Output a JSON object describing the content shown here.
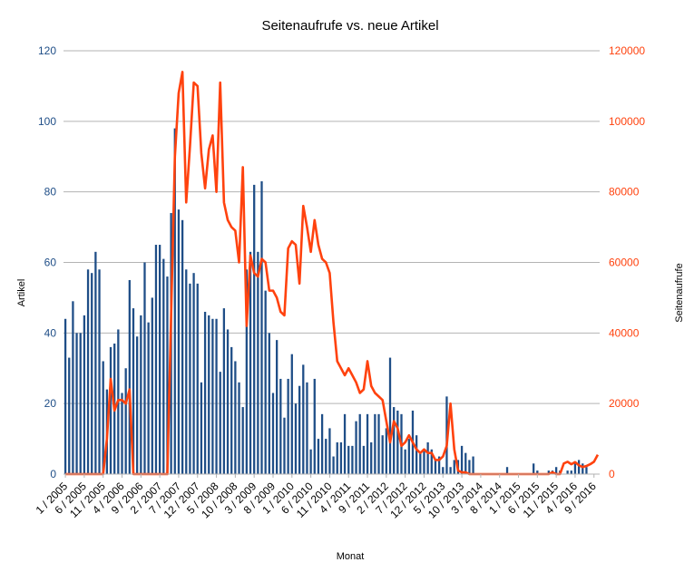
{
  "chart_data": {
    "type": "bar+line",
    "title": "Seitenaufrufe vs. neue Artikel",
    "xlabel": "Monat",
    "ylabel_left": "Artikel",
    "ylabel_right": "Seitenaufrufe",
    "ylim_left": [
      0,
      120
    ],
    "ylim_right": [
      0,
      120000
    ],
    "yticks_left": [
      "0",
      "20",
      "40",
      "60",
      "80",
      "100",
      "120"
    ],
    "yticks_right": [
      "0",
      "20000",
      "40000",
      "60000",
      "80000",
      "100000",
      "120000"
    ],
    "legend": "none",
    "grid": "horizontal",
    "colors": {
      "bars": "#1f4e87",
      "line": "#ff420e",
      "grid": "#b3b3b3",
      "left_axis_text": "#1f4e87",
      "right_axis_text": "#ff420e"
    },
    "x_labels": [
      {
        "i": 0,
        "label": "1 / 2005"
      },
      {
        "i": 5,
        "label": "6 / 2005"
      },
      {
        "i": 10,
        "label": "11 / 2005"
      },
      {
        "i": 15,
        "label": "4 / 2006"
      },
      {
        "i": 20,
        "label": "9 / 2006"
      },
      {
        "i": 25,
        "label": "2 / 2007"
      },
      {
        "i": 30,
        "label": "7 / 2007"
      },
      {
        "i": 35,
        "label": "12 / 2007"
      },
      {
        "i": 40,
        "label": "5 / 2008"
      },
      {
        "i": 45,
        "label": "10 / 2008"
      },
      {
        "i": 50,
        "label": "3 / 2009"
      },
      {
        "i": 55,
        "label": "8 / 2009"
      },
      {
        "i": 60,
        "label": "1 / 2010"
      },
      {
        "i": 65,
        "label": "6 / 2010"
      },
      {
        "i": 70,
        "label": "11 / 2010"
      },
      {
        "i": 75,
        "label": "4 / 2011"
      },
      {
        "i": 80,
        "label": "9 / 2011"
      },
      {
        "i": 85,
        "label": "2 / 2012"
      },
      {
        "i": 90,
        "label": "7 / 2012"
      },
      {
        "i": 95,
        "label": "12 / 2012"
      },
      {
        "i": 100,
        "label": "5 / 2013"
      },
      {
        "i": 105,
        "label": "10 / 2013"
      },
      {
        "i": 110,
        "label": "3 / 2014"
      },
      {
        "i": 115,
        "label": "8 / 2014"
      },
      {
        "i": 120,
        "label": "1 / 2015"
      },
      {
        "i": 125,
        "label": "6 / 2015"
      },
      {
        "i": 130,
        "label": "11 / 2015"
      },
      {
        "i": 135,
        "label": "4 / 2016"
      },
      {
        "i": 140,
        "label": "9 / 2016"
      }
    ],
    "series": [
      {
        "name": "Artikel",
        "type": "bar",
        "axis": "left",
        "values": [
          44,
          33,
          49,
          40,
          40,
          45,
          58,
          57,
          63,
          58,
          32,
          24,
          36,
          37,
          41,
          23,
          30,
          55,
          47,
          39,
          45,
          60,
          43,
          50,
          65,
          65,
          61,
          56,
          74,
          98,
          75,
          72,
          58,
          54,
          57,
          54,
          26,
          46,
          45,
          44,
          44,
          29,
          47,
          41,
          36,
          32,
          26,
          19,
          58,
          63,
          82,
          63,
          83,
          52,
          40,
          23,
          38,
          27,
          16,
          27,
          34,
          20,
          25,
          31,
          26,
          7,
          27,
          10,
          17,
          10,
          13,
          5,
          9,
          9,
          17,
          8,
          8,
          15,
          17,
          8,
          17,
          9,
          17,
          17,
          11,
          13,
          33,
          19,
          18,
          17,
          7,
          10,
          18,
          11,
          6,
          7,
          9,
          7,
          4,
          5,
          2,
          22,
          2,
          4,
          4,
          8,
          6,
          4,
          5,
          0,
          0,
          0,
          0,
          0,
          0,
          0,
          0,
          2,
          0,
          0,
          0,
          0,
          0,
          0,
          3,
          1,
          0,
          0,
          1,
          1,
          2,
          1,
          0,
          1,
          1,
          3,
          4,
          3,
          2,
          0,
          0,
          0
        ]
      },
      {
        "name": "Seitenaufrufe",
        "type": "line",
        "axis": "right",
        "values": [
          0,
          0,
          0,
          0,
          0,
          0,
          0,
          0,
          0,
          0,
          0,
          10000,
          27000,
          18000,
          21000,
          21000,
          20000,
          24000,
          0,
          0,
          0,
          0,
          0,
          0,
          0,
          0,
          0,
          0,
          45000,
          90000,
          108000,
          114000,
          77000,
          93000,
          111000,
          110000,
          91000,
          81000,
          92000,
          96000,
          80000,
          111000,
          77000,
          72000,
          70000,
          69000,
          60000,
          87000,
          42000,
          62000,
          57000,
          56000,
          61000,
          60000,
          52000,
          52000,
          50000,
          46000,
          45000,
          64000,
          66000,
          65000,
          54000,
          76000,
          70000,
          63000,
          72000,
          65000,
          61000,
          60000,
          57000,
          43000,
          32000,
          30000,
          28000,
          30000,
          28000,
          26000,
          23000,
          24000,
          32000,
          25000,
          23000,
          22000,
          21000,
          15000,
          9000,
          15000,
          13000,
          8000,
          9000,
          11000,
          9000,
          7000,
          6000,
          7000,
          6000,
          6000,
          4000,
          4000,
          5000,
          8000,
          20000,
          7000,
          1000,
          500,
          500,
          0,
          0,
          0,
          0,
          0,
          0,
          0,
          0,
          0,
          0,
          0,
          0,
          0,
          0,
          0,
          0,
          0,
          0,
          0,
          0,
          0,
          0,
          500,
          0,
          0,
          3000,
          3500,
          2800,
          3400,
          2500,
          2000,
          2300,
          2800,
          3500,
          5500
        ]
      }
    ]
  }
}
